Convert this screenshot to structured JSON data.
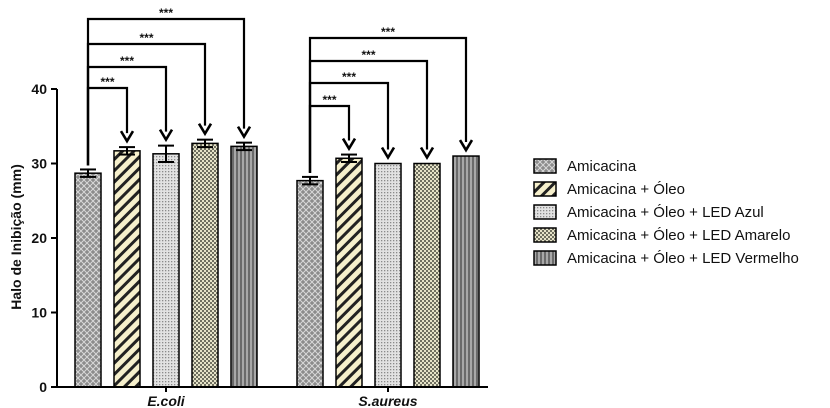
{
  "chart_data": {
    "type": "bar",
    "ylabel": "Halo de Inibição (mm)",
    "xlabel": "",
    "ylim": [
      0,
      40
    ],
    "yticks": [
      "0",
      "10",
      "20",
      "30",
      "40"
    ],
    "categories": [
      "E.coli",
      "S.aureus"
    ],
    "series": [
      {
        "name": "Amicacina",
        "values": [
          28.7,
          27.7
        ],
        "errors": [
          0.5,
          0.5
        ],
        "pattern": "crosshatch-dark"
      },
      {
        "name": "Amicacina + Óleo",
        "values": [
          31.7,
          30.7
        ],
        "errors": [
          0.5,
          0.5
        ],
        "pattern": "diagonal-stripes"
      },
      {
        "name": "Amicacina + Óleo + LED Azul",
        "values": [
          31.3,
          30.0
        ],
        "errors": [
          1.1,
          0.0
        ],
        "pattern": "dots-light"
      },
      {
        "name": "Amicacina + Óleo + LED Amarelo",
        "values": [
          32.7,
          30.0
        ],
        "errors": [
          0.5,
          0.0
        ],
        "pattern": "checker-light"
      },
      {
        "name": "Amicacina + Óleo + LED Vermelho",
        "values": [
          32.3,
          31.0
        ],
        "errors": [
          0.5,
          0.0
        ],
        "pattern": "vertical-stripes"
      }
    ],
    "significance": [
      {
        "category": "E.coli",
        "from_series": 0,
        "to_series": 1,
        "label": "***"
      },
      {
        "category": "E.coli",
        "from_series": 0,
        "to_series": 2,
        "label": "***"
      },
      {
        "category": "E.coli",
        "from_series": 0,
        "to_series": 3,
        "label": "***"
      },
      {
        "category": "E.coli",
        "from_series": 0,
        "to_series": 4,
        "label": "***"
      },
      {
        "category": "S.aureus",
        "from_series": 0,
        "to_series": 1,
        "label": "***"
      },
      {
        "category": "S.aureus",
        "from_series": 0,
        "to_series": 2,
        "label": "***"
      },
      {
        "category": "S.aureus",
        "from_series": 0,
        "to_series": 3,
        "label": "***"
      },
      {
        "category": "S.aureus",
        "from_series": 0,
        "to_series": 4,
        "label": "***"
      }
    ],
    "legend_position": "right",
    "grid": false
  }
}
